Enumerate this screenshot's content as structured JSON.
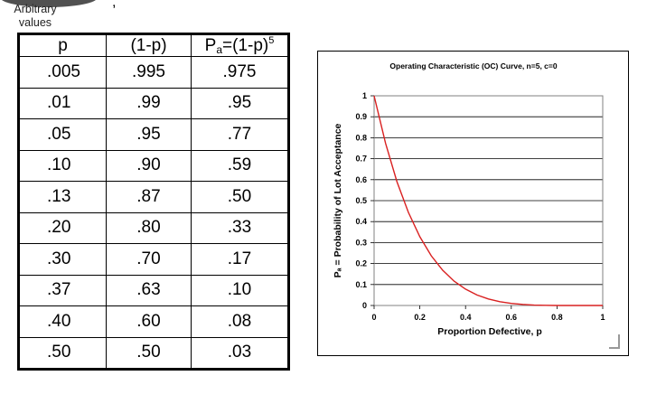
{
  "annotation": {
    "line1": "Arbitrary",
    "line2": "values"
  },
  "table": {
    "headers": {
      "p": "p",
      "one_minus_p": "(1-p)",
      "pa_prefix": "P",
      "pa_sub": "a",
      "pa_mid": "=(1-p)",
      "pa_sup": "5"
    },
    "rows": [
      {
        "p": ".005",
        "q": ".995",
        "pa": ".975"
      },
      {
        "p": ".01",
        "q": ".99",
        "pa": ".95"
      },
      {
        "p": ".05",
        "q": ".95",
        "pa": ".77"
      },
      {
        "p": ".10",
        "q": ".90",
        "pa": ".59"
      },
      {
        "p": ".13",
        "q": ".87",
        "pa": ".50"
      },
      {
        "p": ".20",
        "q": ".80",
        "pa": ".33"
      },
      {
        "p": ".30",
        "q": ".70",
        "pa": ".17"
      },
      {
        "p": ".37",
        "q": ".63",
        "pa": ".10"
      },
      {
        "p": ".40",
        "q": ".60",
        "pa": ".08"
      },
      {
        "p": ".50",
        "q": ".50",
        "pa": ".03"
      }
    ]
  },
  "chart_data": {
    "type": "line",
    "title": "Operating Characteristic (OC) Curve, n=5, c=0",
    "xlabel": "Proportion Defective, p",
    "ylabel": "Pₐ = Probability of Lot Acceptance",
    "xlim": [
      0,
      1
    ],
    "ylim": [
      0,
      1
    ],
    "xticks": [
      "0",
      "0.2",
      "0.4",
      "0.6",
      "0.8",
      "1"
    ],
    "yticks": [
      "0",
      "0.1",
      "0.2",
      "0.3",
      "0.4",
      "0.5",
      "0.6",
      "0.7",
      "0.8",
      "0.9",
      "1"
    ],
    "grid": "horizontal",
    "line_color": "#d92020",
    "series": [
      {
        "x": [
          0,
          0.05,
          0.1,
          0.15,
          0.2,
          0.25,
          0.3,
          0.35,
          0.4,
          0.45,
          0.5,
          0.55,
          0.6,
          0.65,
          0.7,
          0.75,
          0.8,
          0.85,
          0.9,
          0.95,
          1
        ],
        "values": [
          1,
          0.774,
          0.59,
          0.444,
          0.328,
          0.237,
          0.168,
          0.116,
          0.078,
          0.05,
          0.031,
          0.018,
          0.01,
          0.005,
          0.002,
          0.001,
          0,
          0,
          0,
          0,
          0
        ]
      }
    ]
  }
}
